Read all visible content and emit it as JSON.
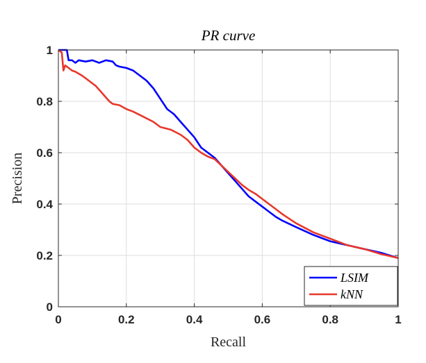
{
  "chart_data": {
    "type": "line",
    "title": "PR curve",
    "xlabel": "Recall",
    "ylabel": "Precision",
    "xlim": [
      0,
      1
    ],
    "ylim": [
      0,
      1
    ],
    "xticks": [
      0,
      0.2,
      0.4,
      0.6,
      0.8,
      1
    ],
    "xtick_labels": [
      "0",
      "0.2",
      "0.4",
      "0.6",
      "0.8",
      "1"
    ],
    "yticks": [
      0,
      0.2,
      0.4,
      0.6,
      0.8,
      1
    ],
    "ytick_labels": [
      "0",
      "0.2",
      "0.4",
      "0.6",
      "0.8",
      "1"
    ],
    "grid": true,
    "legend_position": "bottom-right",
    "series": [
      {
        "name": "LSIM",
        "color": "#0000ff",
        "x": [
          0.0,
          0.01,
          0.025,
          0.03,
          0.04,
          0.05,
          0.06,
          0.08,
          0.1,
          0.12,
          0.14,
          0.16,
          0.17,
          0.18,
          0.2,
          0.22,
          0.24,
          0.26,
          0.28,
          0.3,
          0.32,
          0.34,
          0.36,
          0.38,
          0.4,
          0.42,
          0.44,
          0.46,
          0.48,
          0.5,
          0.52,
          0.54,
          0.56,
          0.58,
          0.6,
          0.62,
          0.64,
          0.66,
          0.7,
          0.75,
          0.8,
          0.85,
          0.9,
          0.95,
          1.0
        ],
        "y": [
          1.0,
          1.0,
          1.0,
          0.96,
          0.96,
          0.95,
          0.96,
          0.955,
          0.96,
          0.95,
          0.96,
          0.955,
          0.94,
          0.935,
          0.93,
          0.92,
          0.9,
          0.88,
          0.85,
          0.81,
          0.77,
          0.75,
          0.72,
          0.69,
          0.66,
          0.62,
          0.6,
          0.58,
          0.55,
          0.52,
          0.49,
          0.46,
          0.43,
          0.41,
          0.39,
          0.37,
          0.35,
          0.335,
          0.31,
          0.28,
          0.255,
          0.24,
          0.225,
          0.21,
          0.19
        ]
      },
      {
        "name": "kNN",
        "color": "#e8372b",
        "x": [
          0.0,
          0.01,
          0.015,
          0.02,
          0.03,
          0.04,
          0.05,
          0.07,
          0.09,
          0.11,
          0.13,
          0.15,
          0.16,
          0.18,
          0.2,
          0.22,
          0.25,
          0.28,
          0.3,
          0.33,
          0.36,
          0.38,
          0.4,
          0.42,
          0.44,
          0.46,
          0.48,
          0.5,
          0.52,
          0.54,
          0.56,
          0.58,
          0.6,
          0.62,
          0.64,
          0.66,
          0.7,
          0.75,
          0.8,
          0.85,
          0.9,
          0.95,
          1.0
        ],
        "y": [
          1.0,
          0.99,
          0.92,
          0.94,
          0.93,
          0.92,
          0.915,
          0.9,
          0.88,
          0.86,
          0.83,
          0.8,
          0.79,
          0.785,
          0.77,
          0.76,
          0.74,
          0.72,
          0.7,
          0.69,
          0.67,
          0.65,
          0.62,
          0.6,
          0.585,
          0.575,
          0.55,
          0.525,
          0.5,
          0.475,
          0.455,
          0.44,
          0.42,
          0.4,
          0.38,
          0.36,
          0.325,
          0.29,
          0.265,
          0.24,
          0.225,
          0.205,
          0.19
        ]
      }
    ]
  }
}
